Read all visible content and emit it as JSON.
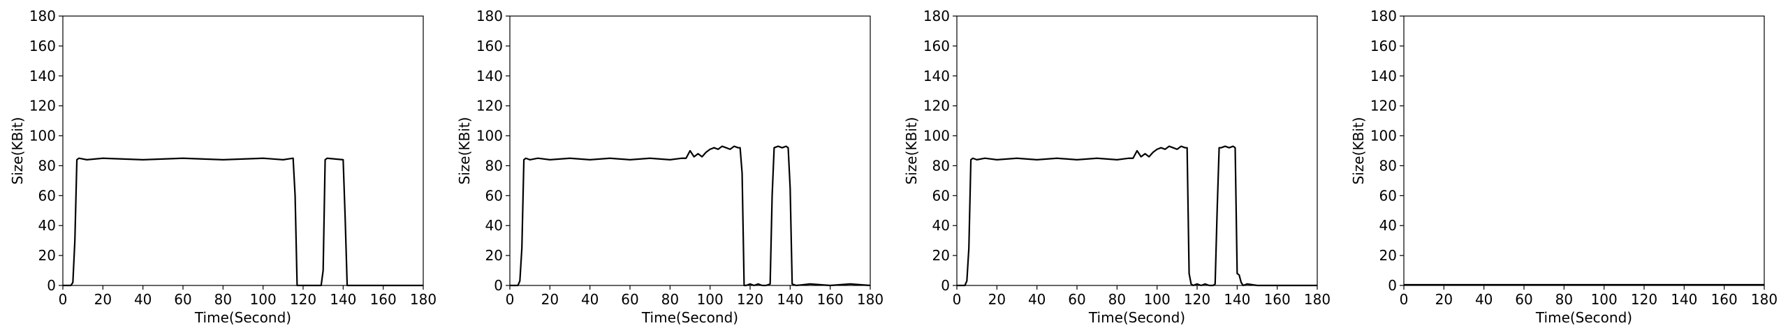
{
  "figure": {
    "panel_count": 4
  },
  "chart_data": [
    {
      "type": "line",
      "title": "",
      "xlabel": "Time(Second)",
      "ylabel": "Size(KBit)",
      "xlim": [
        0,
        180
      ],
      "ylim": [
        0,
        180
      ],
      "xticks": [
        0,
        20,
        40,
        60,
        80,
        100,
        120,
        140,
        160,
        180
      ],
      "yticks": [
        0,
        20,
        40,
        60,
        80,
        100,
        120,
        140,
        160,
        180
      ],
      "grid": false,
      "legend": "none",
      "series": [
        {
          "color": "#000000",
          "x": [
            0,
            4,
            5,
            6,
            7,
            8,
            12,
            20,
            40,
            60,
            80,
            100,
            110,
            115,
            116,
            117,
            118,
            125,
            129,
            130,
            131,
            132,
            140,
            141,
            142,
            143,
            150,
            170,
            180
          ],
          "y": [
            0,
            0,
            2,
            30,
            84,
            85,
            84,
            85,
            84,
            85,
            84,
            85,
            84,
            85,
            60,
            0,
            0,
            0,
            0,
            10,
            84,
            85,
            84,
            45,
            0,
            0,
            0,
            0,
            0
          ]
        }
      ]
    },
    {
      "type": "line",
      "title": "",
      "xlabel": "Time(Second)",
      "ylabel": "Size(KBit)",
      "xlim": [
        0,
        180
      ],
      "ylim": [
        0,
        180
      ],
      "xticks": [
        0,
        20,
        40,
        60,
        80,
        100,
        120,
        140,
        160,
        180
      ],
      "yticks": [
        0,
        20,
        40,
        60,
        80,
        100,
        120,
        140,
        160,
        180
      ],
      "grid": false,
      "legend": "none",
      "series": [
        {
          "color": "#000000",
          "x": [
            0,
            4,
            5,
            6,
            7,
            8,
            10,
            14,
            20,
            30,
            40,
            50,
            60,
            70,
            80,
            86,
            88,
            90,
            92,
            94,
            96,
            98,
            100,
            102,
            104,
            106,
            108,
            110,
            112,
            114,
            115,
            116,
            117,
            118,
            120,
            122,
            124,
            126,
            128,
            130,
            131,
            132,
            134,
            136,
            138,
            139,
            140,
            141,
            143,
            150,
            160,
            170,
            180
          ],
          "y": [
            0,
            0,
            3,
            25,
            84,
            85,
            84,
            85,
            84,
            85,
            84,
            85,
            84,
            85,
            84,
            85,
            85,
            90,
            86,
            88,
            86,
            89,
            91,
            92,
            91,
            93,
            92,
            91,
            93,
            92,
            92,
            75,
            0,
            0,
            1,
            0,
            1,
            0,
            0,
            1,
            60,
            92,
            93,
            92,
            93,
            92,
            65,
            1,
            0,
            1,
            0,
            1,
            0
          ]
        }
      ]
    },
    {
      "type": "line",
      "title": "",
      "xlabel": "Time(Second)",
      "ylabel": "Size(KBit)",
      "xlim": [
        0,
        180
      ],
      "ylim": [
        0,
        180
      ],
      "xticks": [
        0,
        20,
        40,
        60,
        80,
        100,
        120,
        140,
        160,
        180
      ],
      "yticks": [
        0,
        20,
        40,
        60,
        80,
        100,
        120,
        140,
        160,
        180
      ],
      "grid": false,
      "legend": "none",
      "series": [
        {
          "color": "#000000",
          "x": [
            0,
            4,
            5,
            6,
            7,
            8,
            10,
            14,
            20,
            30,
            40,
            50,
            60,
            70,
            80,
            86,
            88,
            90,
            92,
            94,
            96,
            98,
            100,
            102,
            104,
            106,
            108,
            110,
            112,
            114,
            115,
            116,
            117,
            118,
            120,
            122,
            124,
            126,
            128,
            129,
            130,
            131,
            132,
            134,
            136,
            138,
            139,
            140,
            141,
            142,
            143,
            145,
            150,
            160,
            170,
            180
          ],
          "y": [
            0,
            0,
            3,
            25,
            84,
            85,
            84,
            85,
            84,
            85,
            84,
            85,
            84,
            85,
            84,
            85,
            85,
            90,
            86,
            88,
            86,
            89,
            91,
            92,
            91,
            93,
            92,
            91,
            93,
            92,
            92,
            8,
            1,
            0,
            1,
            0,
            1,
            0,
            0,
            1,
            50,
            92,
            92,
            93,
            92,
            93,
            92,
            8,
            7,
            2,
            0,
            1,
            0,
            0,
            0,
            0
          ]
        }
      ]
    },
    {
      "type": "line",
      "title": "",
      "xlabel": "Time(Second)",
      "ylabel": "Size(KBit)",
      "xlim": [
        0,
        180
      ],
      "ylim": [
        0,
        180
      ],
      "xticks": [
        0,
        20,
        40,
        60,
        80,
        100,
        120,
        140,
        160,
        180
      ],
      "yticks": [
        0,
        20,
        40,
        60,
        80,
        100,
        120,
        140,
        160,
        180
      ],
      "grid": false,
      "legend": "none",
      "series": [
        {
          "color": "#000000",
          "x": [
            0,
            180
          ],
          "y": [
            0.5,
            0.5
          ]
        }
      ]
    }
  ]
}
